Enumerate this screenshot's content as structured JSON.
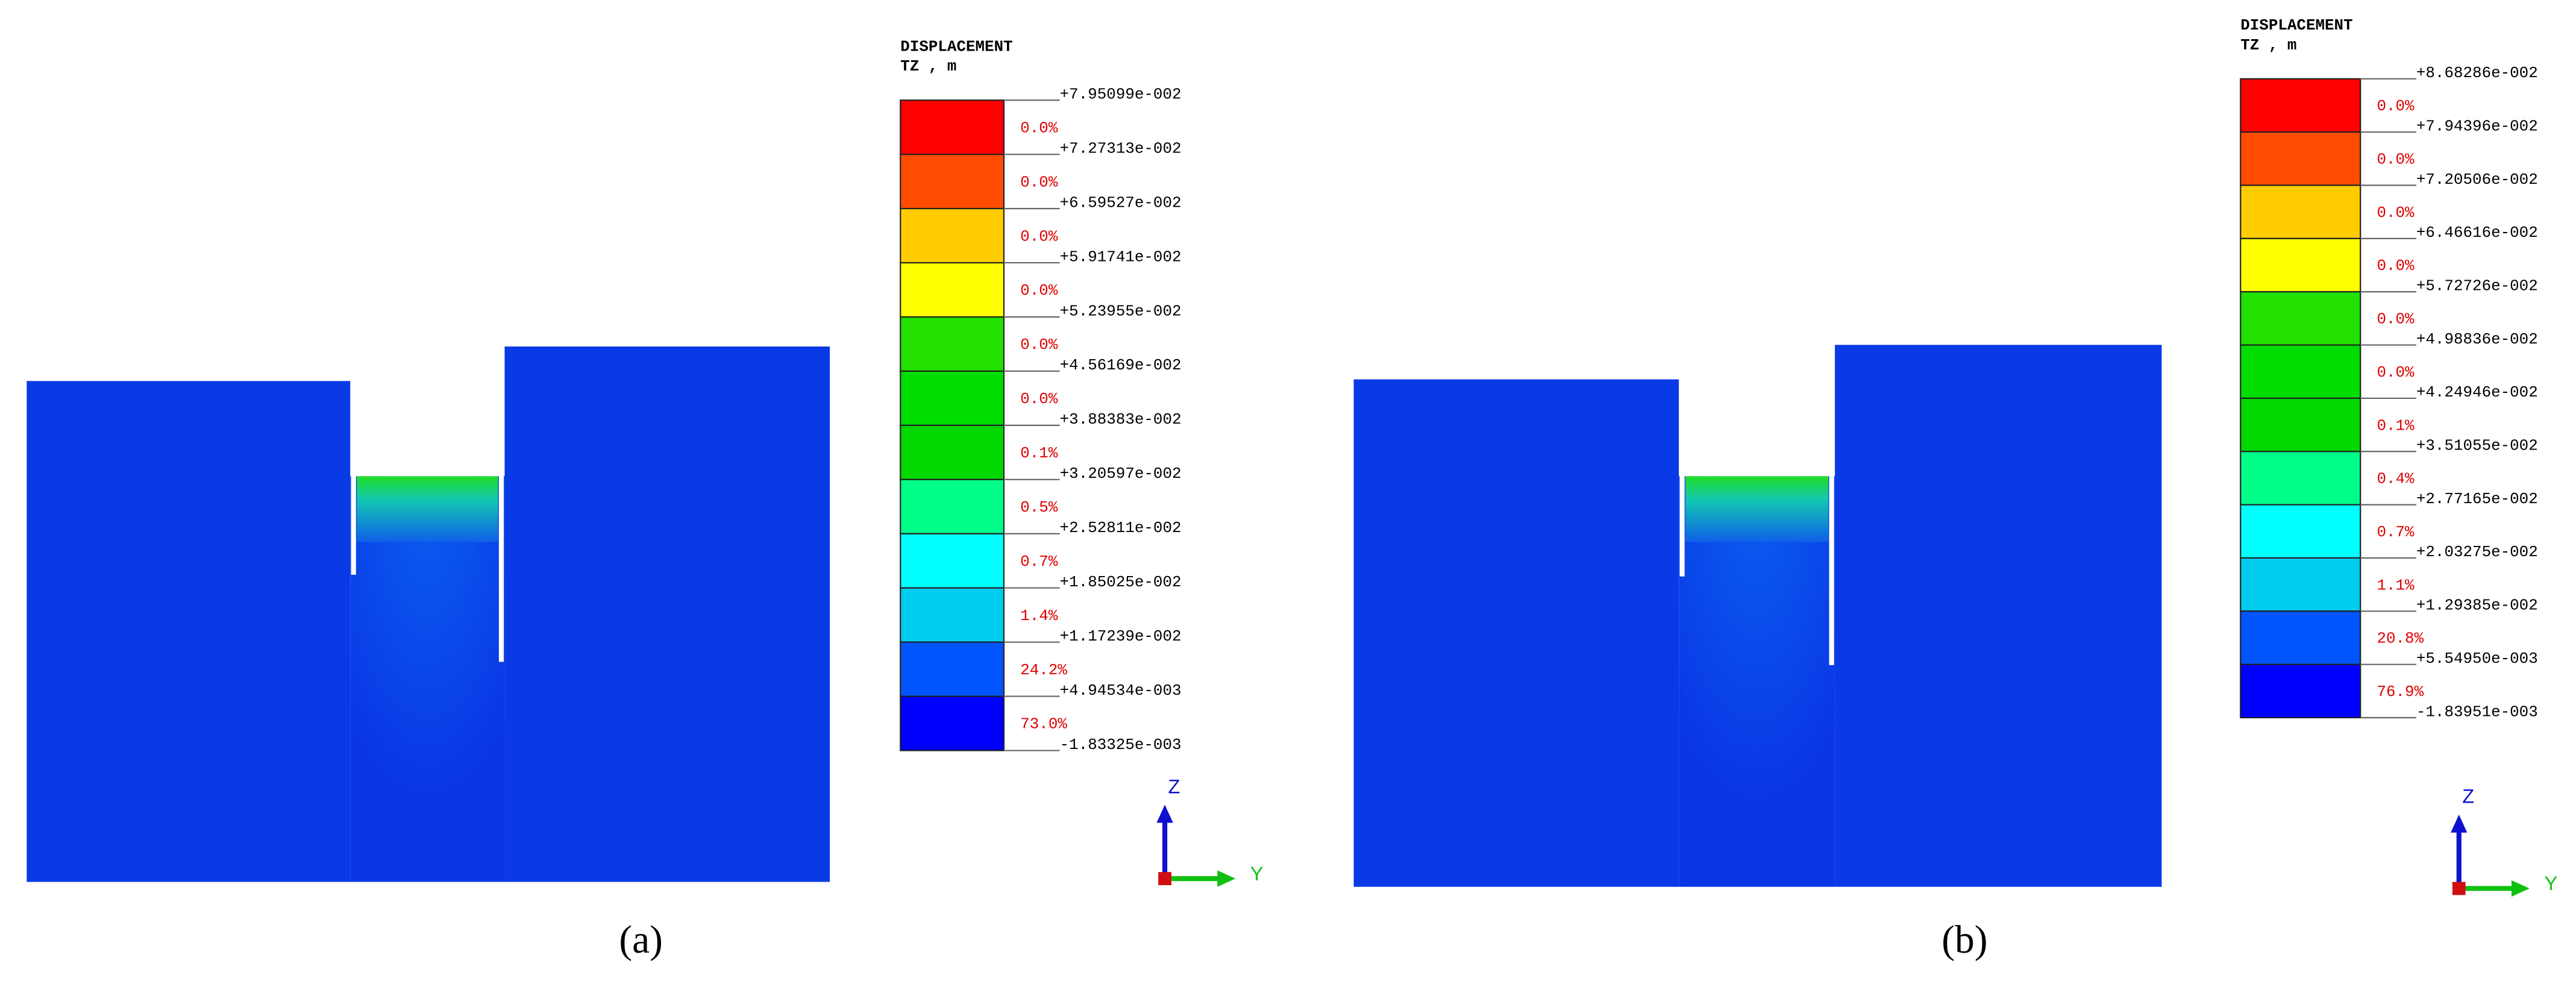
{
  "panels": [
    {
      "label": "(a)",
      "legend": {
        "title": "DISPLACEMENT",
        "subtitle": "TZ , m",
        "levels": [
          "+7.95099e-002",
          "+7.27313e-002",
          "+6.59527e-002",
          "+5.91741e-002",
          "+5.23955e-002",
          "+4.56169e-002",
          "+3.88383e-002",
          "+3.20597e-002",
          "+2.52811e-002",
          "+1.85025e-002",
          "+1.17239e-002",
          "+4.94534e-003",
          "-1.83325e-003"
        ],
        "percents": [
          "0.0%",
          "0.0%",
          "0.0%",
          "0.0%",
          "0.0%",
          "0.0%",
          "0.1%",
          "0.5%",
          "0.7%",
          "1.4%",
          "24.2%",
          "73.0%"
        ]
      },
      "axes": {
        "z": "Z",
        "y": "Y"
      }
    },
    {
      "label": "(b)",
      "legend": {
        "title": "DISPLACEMENT",
        "subtitle": "TZ , m",
        "levels": [
          "+8.68286e-002",
          "+7.94396e-002",
          "+7.20506e-002",
          "+6.46616e-002",
          "+5.72726e-002",
          "+4.98836e-002",
          "+4.24946e-002",
          "+3.51055e-002",
          "+2.77165e-002",
          "+2.03275e-002",
          "+1.29385e-002",
          "+5.54950e-003",
          "-1.83951e-003"
        ],
        "percents": [
          "0.0%",
          "0.0%",
          "0.0%",
          "0.0%",
          "0.0%",
          "0.0%",
          "0.1%",
          "0.4%",
          "0.7%",
          "1.1%",
          "20.8%",
          "76.9%"
        ]
      },
      "axes": {
        "z": "Z",
        "y": "Y"
      }
    }
  ],
  "colors": [
    "#ff0000",
    "#ff4c00",
    "#ffcc00",
    "#ffff00",
    "#22e000",
    "#00dd00",
    "#00d800",
    "#00ff88",
    "#00ffff",
    "#00ccf0",
    "#0055ff",
    "#0000ff"
  ]
}
